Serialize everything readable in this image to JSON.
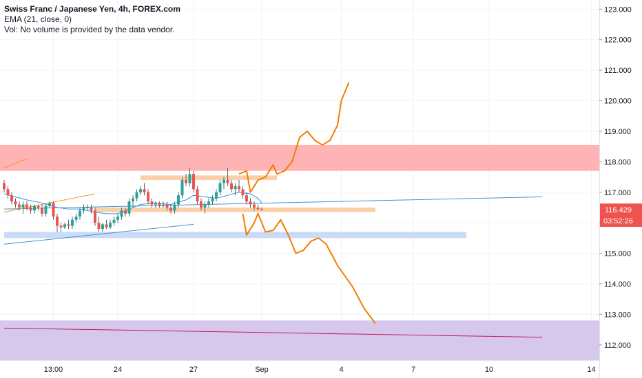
{
  "legend": {
    "title": "Swiss Franc / Japanese Yen, 4h, FOREX.com",
    "ema": "EMA (21, close, 0)",
    "vol": "Vol: No volume is provided by the data vendor."
  },
  "price_scale": {
    "ticks": [
      "123.000",
      "122.000",
      "121.000",
      "120.000",
      "119.000",
      "118.000",
      "117.000",
      "116.000",
      "115.000",
      "114.000",
      "113.000",
      "112.000"
    ],
    "last_price": "116.429",
    "countdown": "03:52:26",
    "last_price_color": "#ef5350"
  },
  "chart_data": {
    "type": "candlestick",
    "symbol": "CHFJPY",
    "timeframe": "4h",
    "ylim": [
      111.5,
      123.3
    ],
    "x_ticks": [
      {
        "label": "13:00",
        "t": 13
      },
      {
        "label": "24",
        "t": 30
      },
      {
        "label": "27",
        "t": 50
      },
      {
        "label": "Sep",
        "t": 68
      },
      {
        "label": "4",
        "t": 89
      },
      {
        "label": "7",
        "t": 108
      },
      {
        "label": "10",
        "t": 128
      },
      {
        "label": "14",
        "t": 155
      }
    ],
    "candles": [
      [
        117.3,
        117.4,
        117.0,
        117.1
      ],
      [
        117.1,
        117.2,
        116.8,
        116.9
      ],
      [
        116.9,
        117.0,
        116.6,
        116.7
      ],
      [
        116.7,
        116.8,
        116.5,
        116.6
      ],
      [
        116.6,
        116.7,
        116.4,
        116.5
      ],
      [
        116.5,
        116.7,
        116.3,
        116.6
      ],
      [
        116.6,
        116.7,
        116.4,
        116.5
      ],
      [
        116.5,
        116.6,
        116.3,
        116.4
      ],
      [
        116.4,
        116.6,
        116.3,
        116.55
      ],
      [
        116.55,
        116.6,
        116.4,
        116.5
      ],
      [
        116.5,
        116.6,
        116.2,
        116.3
      ],
      [
        116.3,
        116.6,
        116.2,
        116.55
      ],
      [
        116.55,
        116.7,
        116.5,
        116.65
      ],
      [
        116.65,
        116.7,
        116.1,
        116.2
      ],
      [
        116.2,
        116.3,
        115.7,
        115.9
      ],
      [
        115.9,
        116.0,
        115.7,
        115.85
      ],
      [
        115.85,
        116.0,
        115.8,
        115.95
      ],
      [
        115.95,
        116.1,
        115.8,
        115.9
      ],
      [
        115.9,
        116.2,
        115.8,
        116.1
      ],
      [
        116.1,
        116.3,
        116.0,
        116.2
      ],
      [
        116.2,
        116.5,
        116.1,
        116.4
      ],
      [
        116.4,
        116.6,
        116.3,
        116.5
      ],
      [
        116.5,
        116.6,
        116.4,
        116.5
      ],
      [
        116.5,
        116.6,
        116.3,
        116.4
      ],
      [
        116.4,
        116.5,
        115.9,
        116.0
      ],
      [
        116.0,
        116.2,
        115.7,
        115.8
      ],
      [
        115.8,
        116.0,
        115.7,
        115.95
      ],
      [
        115.95,
        116.1,
        115.8,
        115.85
      ],
      [
        115.85,
        116.1,
        115.8,
        116.0
      ],
      [
        116.0,
        116.2,
        115.9,
        116.1
      ],
      [
        116.1,
        116.3,
        116.0,
        116.2
      ],
      [
        116.2,
        116.5,
        116.1,
        116.4
      ],
      [
        116.4,
        116.5,
        116.2,
        116.3
      ],
      [
        116.3,
        116.8,
        116.2,
        116.7
      ],
      [
        116.7,
        116.9,
        116.5,
        116.8
      ],
      [
        116.8,
        117.1,
        116.7,
        117.0
      ],
      [
        117.0,
        117.2,
        116.9,
        117.1
      ],
      [
        117.1,
        117.3,
        116.9,
        117.0
      ],
      [
        117.0,
        117.1,
        116.6,
        116.7
      ],
      [
        116.7,
        116.8,
        116.5,
        116.6
      ],
      [
        116.6,
        116.7,
        116.5,
        116.65
      ],
      [
        116.65,
        116.7,
        116.5,
        116.55
      ],
      [
        116.55,
        116.7,
        116.5,
        116.6
      ],
      [
        116.6,
        116.7,
        116.4,
        116.5
      ],
      [
        116.5,
        116.6,
        116.3,
        116.4
      ],
      [
        116.4,
        116.7,
        116.3,
        116.6
      ],
      [
        116.6,
        117.0,
        116.5,
        116.9
      ],
      [
        116.9,
        117.5,
        116.8,
        117.4
      ],
      [
        117.4,
        117.6,
        117.2,
        117.3
      ],
      [
        117.3,
        117.8,
        117.2,
        117.6
      ],
      [
        117.6,
        117.7,
        117.0,
        117.1
      ],
      [
        117.1,
        117.2,
        116.6,
        116.7
      ],
      [
        116.7,
        116.8,
        116.4,
        116.5
      ],
      [
        116.5,
        116.7,
        116.3,
        116.6
      ],
      [
        116.6,
        116.8,
        116.5,
        116.7
      ],
      [
        116.7,
        116.9,
        116.6,
        116.8
      ],
      [
        116.8,
        117.1,
        116.7,
        117.0
      ],
      [
        117.0,
        117.4,
        116.9,
        117.3
      ],
      [
        117.3,
        117.5,
        117.1,
        117.4
      ],
      [
        117.4,
        117.8,
        117.2,
        117.3
      ],
      [
        117.3,
        117.4,
        117.0,
        117.1
      ],
      [
        117.1,
        117.3,
        116.9,
        117.2
      ],
      [
        117.2,
        117.4,
        117.0,
        117.1
      ],
      [
        117.1,
        117.2,
        116.8,
        116.9
      ],
      [
        116.9,
        117.0,
        116.6,
        116.7
      ],
      [
        116.7,
        116.8,
        116.5,
        116.6
      ],
      [
        116.6,
        116.7,
        116.4,
        116.5
      ],
      [
        116.5,
        116.6,
        116.4,
        116.45
      ],
      [
        116.45,
        116.5,
        116.4,
        116.43
      ]
    ],
    "ema": [
      [
        0,
        116.95
      ],
      [
        6,
        116.75
      ],
      [
        10,
        116.65
      ],
      [
        14,
        116.5
      ],
      [
        17,
        116.45
      ],
      [
        20,
        116.45
      ],
      [
        24,
        116.35
      ],
      [
        27,
        116.3
      ],
      [
        30,
        116.3
      ],
      [
        33,
        116.45
      ],
      [
        36,
        116.6
      ],
      [
        40,
        116.65
      ],
      [
        44,
        116.6
      ],
      [
        48,
        116.75
      ],
      [
        50,
        116.9
      ],
      [
        53,
        116.85
      ],
      [
        56,
        116.8
      ],
      [
        59,
        116.9
      ],
      [
        62,
        117.0
      ],
      [
        65,
        116.95
      ],
      [
        67,
        116.8
      ],
      [
        68,
        116.65
      ]
    ],
    "zones": [
      {
        "from": 117.7,
        "to": 118.55,
        "color": "#ffb3b5"
      },
      {
        "from": 115.5,
        "to": 115.7,
        "t0": 0,
        "t1": 122,
        "color": "#c9dbf6"
      },
      {
        "from": 111.5,
        "to": 112.8,
        "color": "#d6c8ec"
      },
      {
        "from": 117.4,
        "to": 117.55,
        "t0": 36,
        "t1": 72,
        "color": "#fbd0a8"
      },
      {
        "from": 116.35,
        "to": 116.5,
        "t0": 24,
        "t1": 98,
        "color": "#fbd0a8"
      }
    ],
    "lines": [
      {
        "points": [
          [
            0,
            115.3
          ],
          [
            50,
            115.95
          ]
        ],
        "color": "#4a90c8"
      },
      {
        "points": [
          [
            0,
            116.45
          ],
          [
            142,
            116.85
          ]
        ],
        "color": "#4a90c8"
      },
      {
        "points": [
          [
            0,
            116.35
          ],
          [
            24,
            116.95
          ]
        ],
        "color": "#f7931e"
      },
      {
        "points": [
          [
            0,
            117.8
          ],
          [
            6,
            118.1
          ]
        ],
        "color": "#f7931e"
      },
      {
        "points": [
          [
            0,
            112.55
          ],
          [
            142,
            112.25
          ]
        ],
        "color": "#c2185b"
      }
    ],
    "paths_up": [
      [
        62,
        117.6
      ],
      [
        64,
        117.7
      ],
      [
        65,
        117.0
      ],
      [
        67,
        117.4
      ],
      [
        69,
        117.5
      ],
      [
        71,
        117.9
      ],
      [
        72,
        117.6
      ],
      [
        74,
        117.7
      ],
      [
        76,
        118.0
      ],
      [
        78,
        118.8
      ],
      [
        80,
        119.0
      ],
      [
        82,
        118.7
      ],
      [
        84,
        118.55
      ],
      [
        86,
        118.7
      ],
      [
        88,
        119.2
      ],
      [
        89,
        120.0
      ],
      [
        91,
        120.6
      ]
    ],
    "paths_down": [
      [
        63,
        116.3
      ],
      [
        64,
        115.6
      ],
      [
        66,
        116.0
      ],
      [
        67,
        116.3
      ],
      [
        69,
        115.7
      ],
      [
        71,
        115.75
      ],
      [
        73,
        116.1
      ],
      [
        75,
        115.6
      ],
      [
        77,
        115.0
      ],
      [
        79,
        115.1
      ],
      [
        81,
        115.4
      ],
      [
        83,
        115.5
      ],
      [
        85,
        115.3
      ],
      [
        88,
        114.6
      ],
      [
        92,
        113.9
      ],
      [
        95,
        113.2
      ],
      [
        98,
        112.7
      ]
    ]
  },
  "colors": {
    "up": "#26a69a",
    "down": "#ef5350",
    "wick": "#5d606b",
    "ema": "#2196f3",
    "proj": "#f57c00",
    "grid": "#f0f3fa",
    "axis_line": "#e0e3eb",
    "last_badge": "#ef5350"
  }
}
